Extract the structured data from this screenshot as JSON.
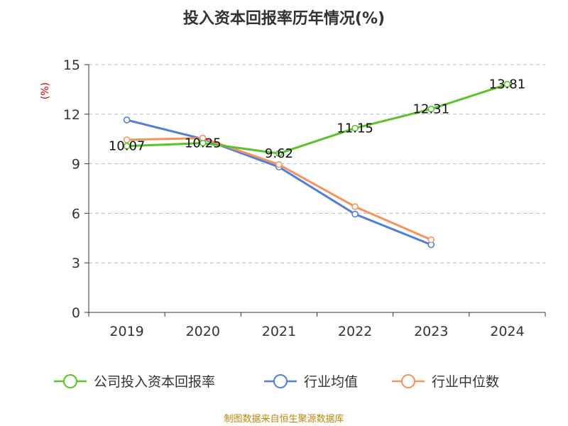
{
  "chart_data": {
    "type": "line",
    "title": "投入资本回报率历年情况(%)",
    "ylabel": "(%)",
    "categories": [
      "2019",
      "2020",
      "2021",
      "2022",
      "2023",
      "2024"
    ],
    "ylim": [
      0,
      15
    ],
    "yticks": [
      "0",
      "3",
      "6",
      "9",
      "12",
      "15"
    ],
    "grid": true,
    "legend_position": "bottom",
    "series": [
      {
        "name": "公司投入资本回报率",
        "color": "#5cc22c",
        "values": [
          10.07,
          10.25,
          9.62,
          11.15,
          12.31,
          13.81
        ],
        "labels": [
          "10.07",
          "10.25",
          "9.62",
          "11.15",
          "12.31",
          "13.81"
        ]
      },
      {
        "name": "行业均值",
        "color": "#4f7fdb",
        "values": [
          11.65,
          10.5,
          8.8,
          5.95,
          4.1,
          null
        ]
      },
      {
        "name": "行业中位数",
        "color": "#f5925e",
        "values": [
          10.45,
          10.55,
          8.95,
          6.4,
          4.4,
          null
        ]
      }
    ]
  },
  "source": "制图数据来自恒生聚源数据库"
}
